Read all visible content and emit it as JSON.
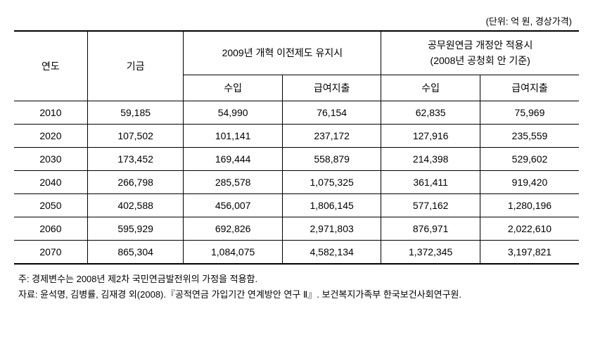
{
  "unit_label": "(단위: 억 원, 경상가격)",
  "headers": {
    "year": "연도",
    "fund": "기금",
    "group1": "2009년 개혁 이전제도 유지시",
    "group2_line1": "공무원연금 개정안 적용시",
    "group2_line2": "(2008년 공청회 안 기준)",
    "income": "수입",
    "benefit": "급여지출"
  },
  "rows": [
    {
      "year": "2010",
      "fund": "59,185",
      "g1_income": "54,990",
      "g1_benefit": "76,154",
      "g2_income": "62,835",
      "g2_benefit": "75,969"
    },
    {
      "year": "2020",
      "fund": "107,502",
      "g1_income": "101,141",
      "g1_benefit": "237,172",
      "g2_income": "127,916",
      "g2_benefit": "235,559"
    },
    {
      "year": "2030",
      "fund": "173,452",
      "g1_income": "169,444",
      "g1_benefit": "558,879",
      "g2_income": "214,398",
      "g2_benefit": "529,602"
    },
    {
      "year": "2040",
      "fund": "266,798",
      "g1_income": "285,578",
      "g1_benefit": "1,075,325",
      "g2_income": "361,411",
      "g2_benefit": "919,420"
    },
    {
      "year": "2050",
      "fund": "402,588",
      "g1_income": "456,007",
      "g1_benefit": "1,806,145",
      "g2_income": "577,162",
      "g2_benefit": "1,280,196"
    },
    {
      "year": "2060",
      "fund": "595,929",
      "g1_income": "692,826",
      "g1_benefit": "2,971,803",
      "g2_income": "876,971",
      "g2_benefit": "2,022,610"
    },
    {
      "year": "2070",
      "fund": "865,304",
      "g1_income": "1,084,075",
      "g1_benefit": "4,582,134",
      "g2_income": "1,372,345",
      "g2_benefit": "3,197,821"
    }
  ],
  "footnotes": {
    "note": "주: 경제변수는 2008년 제2차 국민연금발전위의 가정을 적용함.",
    "source": "자료: 윤석명, 김병률, 김재경 외(2008).『공적연금 가입기간 연계방안 연구 Ⅱ』. 보건복지가족부 한국보건사회연구원."
  },
  "table_style": {
    "border_color": "#000000",
    "background_color": "#ffffff",
    "text_color": "#000000",
    "font_size_body": 14,
    "font_size_note": 13
  }
}
